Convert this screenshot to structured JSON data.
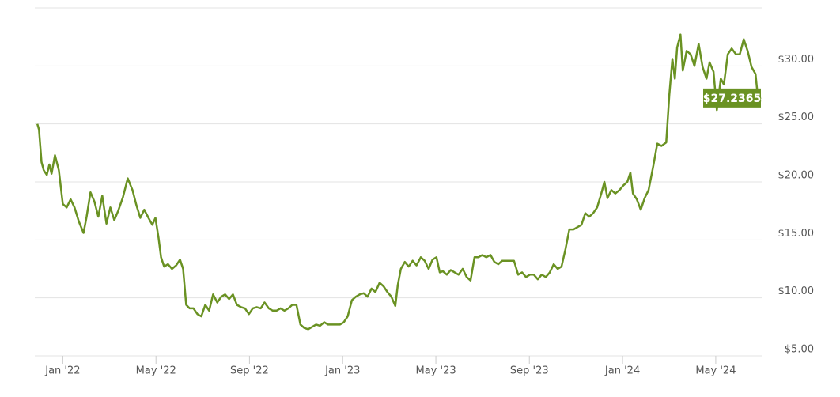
{
  "chart_data": {
    "type": "line",
    "color": "#6a9223",
    "grid": true,
    "xlim": [
      2021.9,
      2024.5
    ],
    "xticks": [
      {
        "value": 2022,
        "label": "Jan '22"
      },
      {
        "value": 2022.333,
        "label": "May '22"
      },
      {
        "value": 2022.667,
        "label": "Sep '22"
      },
      {
        "value": 2023,
        "label": "Jan '23"
      },
      {
        "value": 2023.333,
        "label": "May '23"
      },
      {
        "value": 2023.667,
        "label": "Sep '23"
      },
      {
        "value": 2024,
        "label": "Jan '24"
      },
      {
        "value": 2024.333,
        "label": "May '24"
      }
    ],
    "ylim": [
      5,
      35
    ],
    "yticks": [
      {
        "value": 5,
        "label": "$5.00"
      },
      {
        "value": 10,
        "label": "$10.00"
      },
      {
        "value": 15,
        "label": "$15.00"
      },
      {
        "value": 20,
        "label": "$20.00"
      },
      {
        "value": 25,
        "label": "$25.00"
      },
      {
        "value": 30,
        "label": "$30.00"
      }
    ],
    "annotation": {
      "label": "$27.2365",
      "value": 27.2365
    },
    "x": [
      2021.909,
      2021.915,
      2021.924,
      2021.932,
      2021.943,
      2021.952,
      2021.96,
      2021.972,
      2021.986,
      2022.0,
      2022.014,
      2022.028,
      2022.042,
      2022.057,
      2022.074,
      2022.085,
      2022.099,
      2022.113,
      2022.127,
      2022.141,
      2022.156,
      2022.17,
      2022.184,
      2022.198,
      2022.215,
      2022.232,
      2022.249,
      2022.263,
      2022.277,
      2022.291,
      2022.306,
      2022.32,
      2022.331,
      2022.342,
      2022.351,
      2022.362,
      2022.376,
      2022.39,
      2022.405,
      2022.419,
      2022.43,
      2022.441,
      2022.453,
      2022.467,
      2022.481,
      2022.495,
      2022.509,
      2022.523,
      2022.537,
      2022.552,
      2022.566,
      2022.58,
      2022.594,
      2022.608,
      2022.622,
      2022.637,
      2022.651,
      2022.665,
      2022.679,
      2022.693,
      2022.707,
      2022.721,
      2022.736,
      2022.75,
      2022.764,
      2022.778,
      2022.792,
      2022.806,
      2022.82,
      2022.835,
      2022.849,
      2022.863,
      2022.877,
      2022.891,
      2022.905,
      2022.919,
      2022.934,
      2022.948,
      2022.962,
      2022.976,
      2022.99,
      2023.004,
      2023.018,
      2023.033,
      2023.047,
      2023.061,
      2023.075,
      2023.089,
      2023.103,
      2023.117,
      2023.132,
      2023.146,
      2023.16,
      2023.174,
      2023.188,
      2023.197,
      2023.208,
      2023.222,
      2023.236,
      2023.25,
      2023.264,
      2023.279,
      2023.293,
      2023.307,
      2023.321,
      2023.335,
      2023.347,
      2023.358,
      2023.372,
      2023.386,
      2023.4,
      2023.414,
      2023.429,
      2023.443,
      2023.457,
      2023.471,
      2023.485,
      2023.499,
      2023.513,
      2023.528,
      2023.542,
      2023.556,
      2023.57,
      2023.584,
      2023.598,
      2023.612,
      2023.627,
      2023.641,
      2023.655,
      2023.669,
      2023.683,
      2023.697,
      2023.711,
      2023.726,
      2023.74,
      2023.754,
      2023.768,
      2023.782,
      2023.796,
      2023.81,
      2023.825,
      2023.839,
      2023.853,
      2023.867,
      2023.881,
      2023.895,
      2023.909,
      2023.924,
      2023.935,
      2023.946,
      2023.96,
      2023.974,
      2023.989,
      2024.003,
      2024.017,
      2024.028,
      2024.037,
      2024.051,
      2024.065,
      2024.079,
      2024.093,
      2024.11,
      2024.124,
      2024.139,
      2024.156,
      2024.167,
      2024.178,
      2024.187,
      2024.195,
      2024.207,
      2024.215,
      2024.229,
      2024.243,
      2024.257,
      2024.272,
      2024.286,
      2024.3,
      2024.311,
      2024.325,
      2024.337,
      2024.351,
      2024.362,
      2024.376,
      2024.39,
      2024.405,
      2024.419,
      2024.433,
      2024.447,
      2024.461,
      2024.475,
      2024.484,
      2024.495
    ],
    "values": [
      25.0,
      24.5,
      21.7,
      21.0,
      20.6,
      21.5,
      20.7,
      22.3,
      21.0,
      18.1,
      17.8,
      18.5,
      17.8,
      16.6,
      15.6,
      17.0,
      19.1,
      18.3,
      17.0,
      18.8,
      16.4,
      17.8,
      16.7,
      17.5,
      18.7,
      20.3,
      19.3,
      18.0,
      16.9,
      17.6,
      16.9,
      16.3,
      16.9,
      15.2,
      13.5,
      12.7,
      12.9,
      12.5,
      12.8,
      13.3,
      12.5,
      9.4,
      9.1,
      9.1,
      8.6,
      8.4,
      9.4,
      8.9,
      10.3,
      9.6,
      10.1,
      10.3,
      9.9,
      10.3,
      9.4,
      9.2,
      9.1,
      8.6,
      9.1,
      9.2,
      9.1,
      9.6,
      9.1,
      8.9,
      8.9,
      9.1,
      8.9,
      9.1,
      9.4,
      9.4,
      7.7,
      7.4,
      7.3,
      7.5,
      7.7,
      7.6,
      7.9,
      7.7,
      7.7,
      7.7,
      7.7,
      7.9,
      8.4,
      9.8,
      10.1,
      10.3,
      10.4,
      10.1,
      10.8,
      10.5,
      11.3,
      11.0,
      10.5,
      10.1,
      9.3,
      11.1,
      12.5,
      13.1,
      12.7,
      13.2,
      12.8,
      13.5,
      13.2,
      12.5,
      13.3,
      13.5,
      12.2,
      12.3,
      12.0,
      12.4,
      12.2,
      12.0,
      12.5,
      11.8,
      11.5,
      13.5,
      13.5,
      13.7,
      13.5,
      13.7,
      13.1,
      12.9,
      13.2,
      13.2,
      13.2,
      13.2,
      12.0,
      12.2,
      11.8,
      12.0,
      12.0,
      11.6,
      12.0,
      11.8,
      12.2,
      12.9,
      12.5,
      12.7,
      14.2,
      15.9,
      15.9,
      16.1,
      16.3,
      17.3,
      17.0,
      17.3,
      17.8,
      19.0,
      20.0,
      18.6,
      19.3,
      19.0,
      19.3,
      19.7,
      20.0,
      20.8,
      19.0,
      18.5,
      17.6,
      18.6,
      19.3,
      21.4,
      23.3,
      23.1,
      23.4,
      27.5,
      30.6,
      28.9,
      31.6,
      32.7,
      29.6,
      31.3,
      31.0,
      30.0,
      31.9,
      29.9,
      28.9,
      30.3,
      29.5,
      26.2,
      28.9,
      28.4,
      31.0,
      31.5,
      31.0,
      31.0,
      32.3,
      31.3,
      29.9,
      29.3,
      27.2,
      27.2365
    ]
  }
}
